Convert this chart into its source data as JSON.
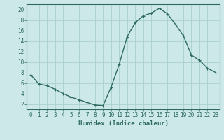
{
  "x": [
    0,
    1,
    2,
    3,
    4,
    5,
    6,
    7,
    8,
    9,
    10,
    11,
    12,
    13,
    14,
    15,
    16,
    17,
    18,
    19,
    20,
    21,
    22,
    23
  ],
  "y": [
    7.5,
    5.8,
    5.5,
    4.8,
    4.0,
    3.3,
    2.8,
    2.3,
    1.8,
    1.7,
    5.2,
    9.5,
    14.8,
    17.5,
    18.8,
    19.3,
    20.2,
    19.2,
    17.2,
    15.0,
    11.3,
    10.3,
    8.8,
    8.0
  ],
  "line_color": "#2e6b5e",
  "marker": "+",
  "marker_size": 3,
  "line_width": 1.0,
  "bg_color": "#cce8e8",
  "grid_color": "#aacfcf",
  "xlabel": "Humidex (Indice chaleur)",
  "xlim": [
    -0.5,
    23.5
  ],
  "ylim": [
    1,
    21
  ],
  "yticks": [
    2,
    4,
    6,
    8,
    10,
    12,
    14,
    16,
    18,
    20
  ],
  "xticks": [
    0,
    1,
    2,
    3,
    4,
    5,
    6,
    7,
    8,
    9,
    10,
    11,
    12,
    13,
    14,
    15,
    16,
    17,
    18,
    19,
    20,
    21,
    22,
    23
  ],
  "tick_color": "#2e6b5e",
  "label_fontsize": 6.5,
  "tick_fontsize": 5.5
}
